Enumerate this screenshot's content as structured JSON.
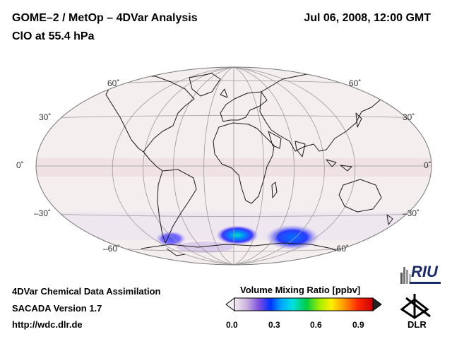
{
  "header": {
    "title_line1": "GOME–2 / MetOp – 4DVar Analysis",
    "title_line2": "ClO at 55.4 hPa",
    "datetime": "Jul 06, 2008, 12:00 GMT"
  },
  "map": {
    "projection": "Hammer-Aitoff",
    "lat_labels": {
      "n60": "60˚",
      "n30": "30˚",
      "eq": "0˚",
      "s30": "–30˚",
      "s60": "–60˚"
    },
    "background_color": "#f5eeee",
    "high_concentration_regions": [
      "Antarctic lower stratosphere"
    ]
  },
  "colorbar": {
    "title": "Volume Mixing Ratio [ppbv]",
    "ticks": [
      "0.0",
      "0.3",
      "0.6",
      "0.9"
    ],
    "range": [
      0.0,
      1.0
    ],
    "colors": [
      "#f2eef4",
      "#c8b0dc",
      "#7a4ce0",
      "#0033ff",
      "#00aaff",
      "#00e0e0",
      "#00cc44",
      "#aaee00",
      "#ffee00",
      "#ff9900",
      "#ff2a00",
      "#cc0000"
    ]
  },
  "footer": {
    "line1": "4DVar Chemical Data Assimilation",
    "line2": "SACADA Version 1.7",
    "line3": "http://wdc.dlr.de"
  },
  "logos": {
    "riu": "RIU",
    "dlr": "DLR"
  }
}
